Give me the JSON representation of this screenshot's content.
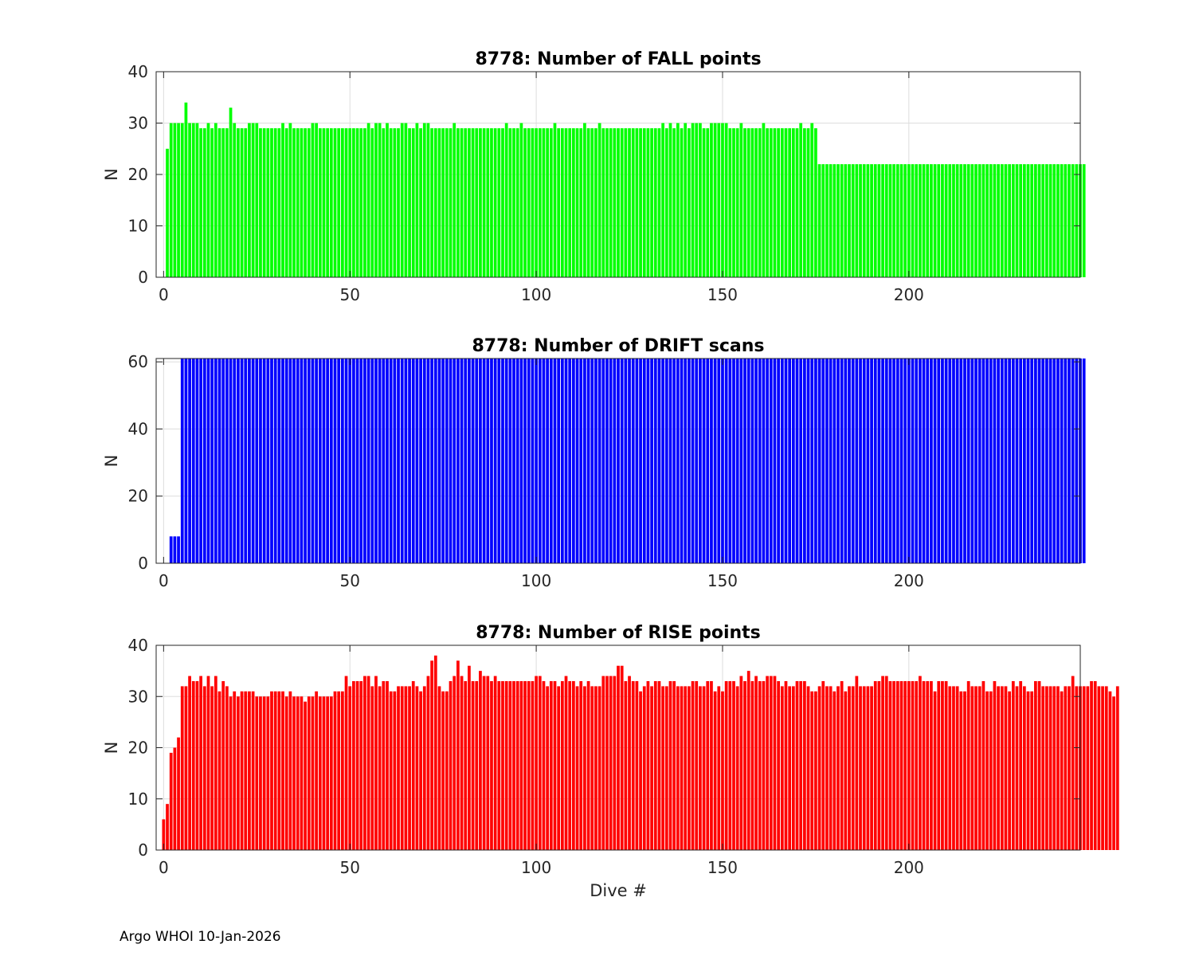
{
  "footer": "Argo WHOI 10-Jan-2026",
  "chart_data": [
    {
      "type": "bar",
      "title": "8778: Number of FALL points",
      "xlabel": "",
      "ylabel": "N",
      "color": "#00ff00",
      "xlim": [
        -2,
        246
      ],
      "ylim": [
        0,
        40
      ],
      "xticks": [
        0,
        50,
        100,
        150,
        200
      ],
      "yticks": [
        0,
        10,
        20,
        30,
        40
      ],
      "grid": true,
      "x_start": 1,
      "values": [
        25,
        30,
        30,
        30,
        30,
        34,
        30,
        30,
        30,
        29,
        29,
        30,
        29,
        30,
        29,
        29,
        29,
        33,
        30,
        29,
        29,
        29,
        30,
        30,
        30,
        29,
        29,
        29,
        29,
        29,
        29,
        30,
        29,
        30,
        29,
        29,
        29,
        29,
        29,
        30,
        30,
        29,
        29,
        29,
        29,
        29,
        29,
        29,
        29,
        29,
        29,
        29,
        29,
        29,
        30,
        29,
        30,
        30,
        29,
        30,
        29,
        29,
        29,
        30,
        30,
        29,
        29,
        30,
        29,
        30,
        30,
        29,
        29,
        29,
        29,
        29,
        29,
        30,
        29,
        29,
        29,
        29,
        29,
        29,
        29,
        29,
        29,
        29,
        29,
        29,
        29,
        30,
        29,
        29,
        29,
        30,
        29,
        29,
        29,
        29,
        29,
        29,
        29,
        29,
        30,
        29,
        29,
        29,
        29,
        29,
        29,
        29,
        30,
        29,
        29,
        29,
        30,
        29,
        29,
        29,
        29,
        29,
        29,
        29,
        29,
        29,
        29,
        29,
        29,
        29,
        29,
        29,
        29,
        30,
        29,
        30,
        29,
        30,
        29,
        30,
        29,
        30,
        30,
        30,
        29,
        29,
        30,
        30,
        30,
        30,
        30,
        29,
        29,
        29,
        30,
        29,
        29,
        29,
        29,
        29,
        30,
        29,
        29,
        29,
        29,
        29,
        29,
        29,
        29,
        29,
        30,
        29,
        29,
        30,
        29,
        22,
        22,
        22,
        22,
        22,
        22,
        22,
        22,
        22,
        22,
        22,
        22,
        22,
        22,
        22,
        22,
        22,
        22,
        22,
        22,
        22,
        22,
        22,
        22,
        22,
        22,
        22,
        22,
        22,
        22,
        22,
        22,
        22,
        22,
        22,
        22,
        22,
        22,
        22,
        22,
        22,
        22,
        22,
        22,
        22,
        22,
        22,
        22,
        22,
        22,
        22,
        22,
        22,
        22,
        22,
        22,
        22,
        22,
        22,
        22,
        22,
        22,
        22,
        22,
        22,
        22,
        22,
        22,
        22,
        22,
        22,
        22
      ]
    },
    {
      "type": "bar",
      "title": "8778: Number of DRIFT scans",
      "xlabel": "",
      "ylabel": "N",
      "color": "#0000ff",
      "xlim": [
        -2,
        246
      ],
      "ylim": [
        0,
        61
      ],
      "xticks": [
        0,
        50,
        100,
        150,
        200
      ],
      "yticks": [
        0,
        20,
        40,
        60
      ],
      "grid": true,
      "x_start": 2,
      "values": [
        8,
        8,
        8,
        61,
        61,
        61,
        61,
        61,
        61,
        61,
        61,
        61,
        61,
        61,
        61,
        61,
        61,
        61,
        61,
        61,
        61,
        61,
        61,
        61,
        61,
        61,
        61,
        61,
        61,
        61,
        61,
        61,
        61,
        61,
        61,
        61,
        61,
        61,
        61,
        61,
        61,
        61,
        61,
        61,
        61,
        61,
        61,
        61,
        61,
        61,
        61,
        61,
        61,
        61,
        61,
        61,
        61,
        61,
        61,
        61,
        61,
        61,
        61,
        61,
        61,
        61,
        61,
        61,
        61,
        61,
        61,
        61,
        61,
        61,
        61,
        61,
        61,
        61,
        61,
        61,
        61,
        61,
        61,
        61,
        61,
        61,
        61,
        61,
        61,
        61,
        61,
        61,
        61,
        61,
        61,
        61,
        61,
        61,
        61,
        61,
        61,
        61,
        61,
        61,
        61,
        61,
        61,
        61,
        61,
        61,
        61,
        61,
        61,
        61,
        61,
        61,
        61,
        61,
        61,
        61,
        61,
        61,
        61,
        61,
        61,
        61,
        61,
        61,
        61,
        61,
        61,
        61,
        61,
        61,
        61,
        61,
        61,
        61,
        61,
        61,
        61,
        61,
        61,
        61,
        61,
        61,
        61,
        61,
        61,
        61,
        61,
        61,
        61,
        61,
        61,
        61,
        61,
        61,
        61,
        61,
        61,
        61,
        61,
        61,
        61,
        61,
        61,
        61,
        61,
        61,
        61,
        61,
        61,
        61,
        61,
        61,
        61,
        61,
        61,
        61,
        61,
        61,
        61,
        61,
        61,
        61,
        61,
        61,
        61,
        61,
        61,
        61,
        61,
        61,
        61,
        61,
        61,
        61,
        61,
        61,
        61,
        61,
        61,
        61,
        61,
        61,
        61,
        61,
        61,
        61,
        61,
        61,
        61,
        61,
        61,
        61,
        61,
        61,
        61,
        61,
        61,
        61,
        61,
        61,
        61,
        61,
        61,
        61,
        61,
        61,
        61,
        61,
        61,
        61,
        61,
        61,
        61,
        61,
        61,
        61,
        61,
        61,
        61,
        61,
        61,
        61
      ]
    },
    {
      "type": "bar",
      "title": "8778: Number of RISE points",
      "xlabel": "Dive #",
      "ylabel": "N",
      "color": "#ff0000",
      "xlim": [
        -2,
        246
      ],
      "ylim": [
        0,
        40
      ],
      "xticks": [
        0,
        50,
        100,
        150,
        200
      ],
      "yticks": [
        0,
        10,
        20,
        30,
        40
      ],
      "grid": true,
      "x_start": 0,
      "values": [
        6,
        9,
        19,
        20,
        22,
        32,
        32,
        34,
        33,
        33,
        34,
        32,
        34,
        32,
        34,
        31,
        33,
        32,
        30,
        31,
        30,
        31,
        31,
        31,
        31,
        30,
        30,
        30,
        30,
        31,
        31,
        31,
        31,
        30,
        31,
        30,
        30,
        30,
        29,
        30,
        30,
        31,
        30,
        30,
        30,
        30,
        31,
        31,
        31,
        34,
        32,
        33,
        33,
        33,
        34,
        34,
        32,
        34,
        32,
        33,
        33,
        31,
        31,
        32,
        32,
        32,
        32,
        33,
        32,
        31,
        32,
        34,
        37,
        38,
        32,
        31,
        31,
        33,
        34,
        37,
        34,
        33,
        36,
        33,
        33,
        35,
        34,
        34,
        33,
        34,
        33,
        33,
        33,
        33,
        33,
        33,
        33,
        33,
        33,
        33,
        34,
        34,
        33,
        32,
        33,
        33,
        32,
        33,
        34,
        33,
        33,
        32,
        33,
        32,
        33,
        32,
        32,
        32,
        34,
        34,
        34,
        34,
        36,
        36,
        33,
        34,
        33,
        33,
        31,
        32,
        33,
        32,
        33,
        33,
        32,
        32,
        33,
        33,
        32,
        32,
        32,
        32,
        33,
        33,
        32,
        32,
        33,
        33,
        31,
        32,
        31,
        33,
        33,
        33,
        32,
        34,
        33,
        35,
        33,
        34,
        33,
        33,
        34,
        34,
        34,
        33,
        32,
        33,
        32,
        32,
        33,
        33,
        33,
        32,
        31,
        31,
        32,
        33,
        32,
        32,
        31,
        32,
        33,
        31,
        32,
        32,
        34,
        32,
        32,
        32,
        32,
        33,
        33,
        34,
        34,
        33,
        33,
        33,
        33,
        33,
        33,
        33,
        33,
        34,
        33,
        33,
        33,
        31,
        33,
        33,
        33,
        32,
        32,
        32,
        31,
        31,
        33,
        32,
        32,
        32,
        33,
        31,
        31,
        33,
        32,
        32,
        32,
        31,
        33,
        32,
        33,
        32,
        31,
        31,
        33,
        33,
        32,
        32,
        32,
        32,
        32,
        31,
        32,
        32,
        34,
        32,
        32,
        32,
        32,
        33,
        33,
        32,
        32,
        32,
        31,
        30,
        32
      ]
    }
  ]
}
